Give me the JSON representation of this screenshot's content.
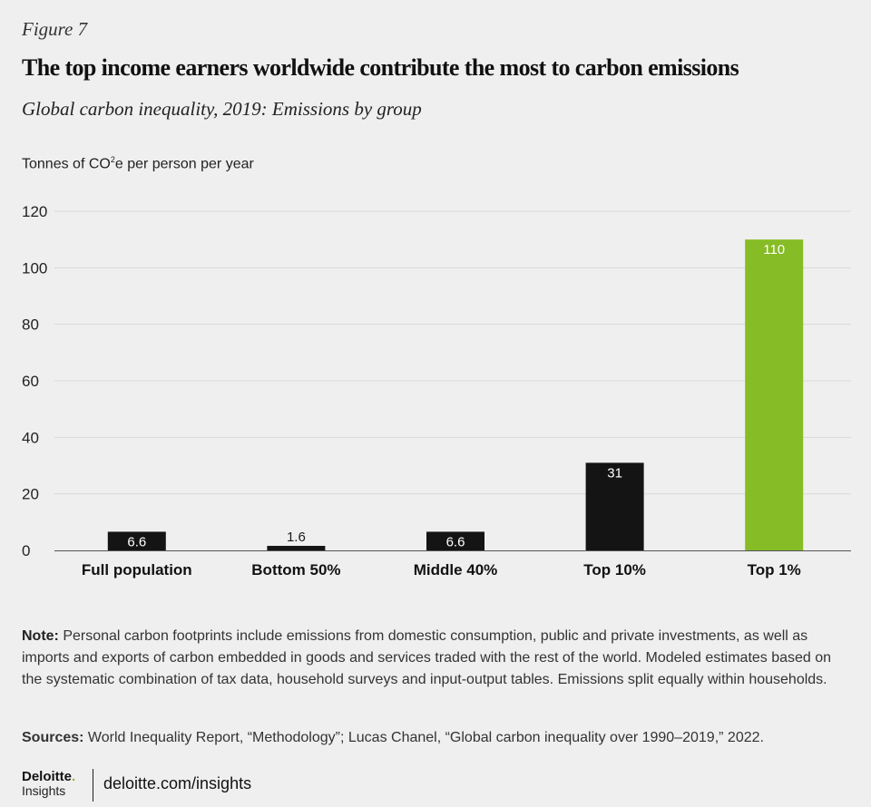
{
  "figure_label": "Figure 7",
  "chart_data": {
    "type": "bar",
    "title": "The top income earners worldwide contribute the most to carbon emissions",
    "subtitle": "Global carbon inequality, 2019: Emissions by group",
    "ylabel_main": "Tonnes of CO",
    "ylabel_sup": "2",
    "ylabel_rest": "e per person per year",
    "xlabel": "",
    "categories": [
      "Full population",
      "Bottom 50%",
      "Middle 40%",
      "Top 10%",
      "Top 1%"
    ],
    "values": [
      6.6,
      1.6,
      6.6,
      31,
      110
    ],
    "value_labels": [
      "6.6",
      "1.6",
      "6.6",
      "31",
      "110"
    ],
    "highlight_index": 4,
    "ylim": [
      0,
      120
    ],
    "yticks": [
      0,
      20,
      40,
      60,
      80,
      100,
      120
    ],
    "grid": true,
    "colors": {
      "default": "#141414",
      "highlight": "#86bc25",
      "grid": "#d9d9d9",
      "axis": "#555555"
    }
  },
  "note": {
    "label": "Note:",
    "text": " Personal carbon footprints include emissions from domestic consumption, public and private investments, as well as imports and exports of carbon embedded in goods and services traded with the rest of the world. Modeled estimates based on the systematic combination of tax data, household surveys and input-output tables. Emissions split equally within households."
  },
  "sources": {
    "label": "Sources:",
    "text": " World Inequality Report, “Methodology”; Lucas Chanel, “Global carbon inequality over 1990–2019,” 2022."
  },
  "footer": {
    "brand": "Deloitte",
    "brand_dot": ".",
    "brand_sub": "Insights",
    "link": "deloitte.com/insights"
  }
}
